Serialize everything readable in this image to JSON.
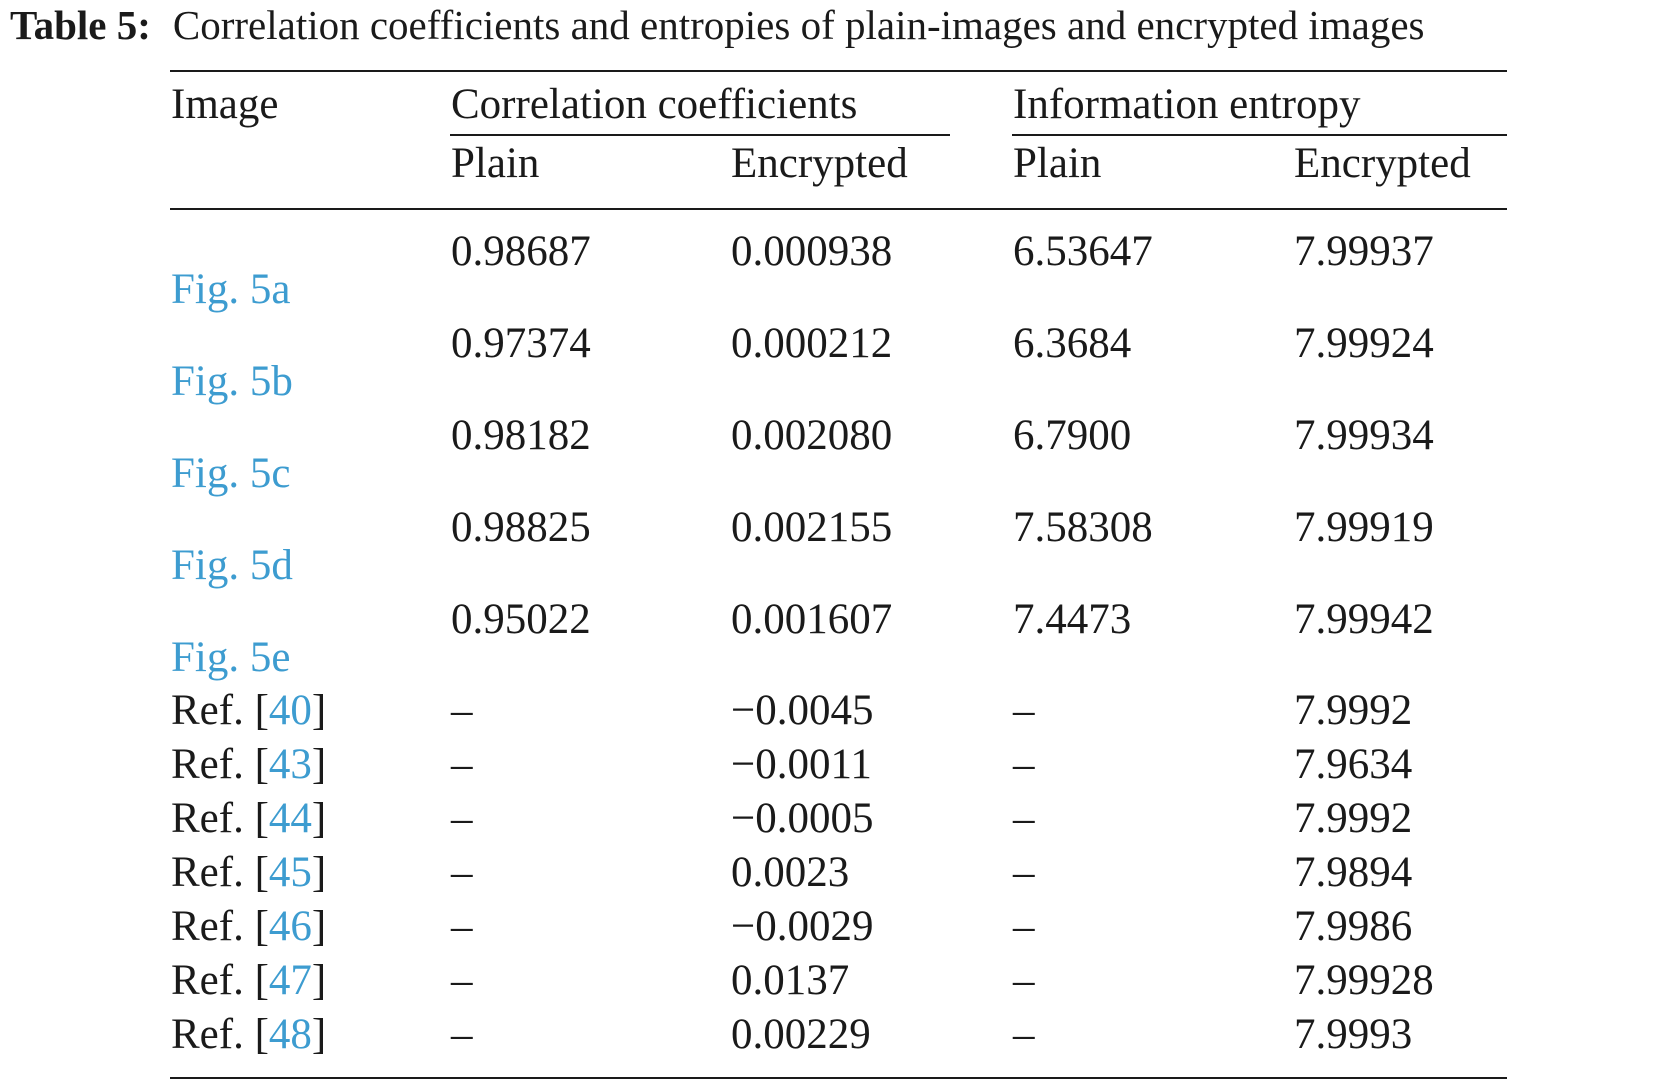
{
  "caption": {
    "label": "Table 5:",
    "text": "Correlation coefficients and entropies of plain-images and encrypted images"
  },
  "headers": {
    "image": "Image",
    "correlation": "Correlation coefficients",
    "entropy": "Information entropy",
    "plain": "Plain",
    "encrypted": "Encrypted"
  },
  "fig_rows": [
    {
      "label": "Fig. 5a",
      "corr_plain": "0.98687",
      "corr_enc": "0.000938",
      "ent_plain": "6.53647",
      "ent_enc": "7.99937"
    },
    {
      "label": "Fig. 5b",
      "corr_plain": "0.97374",
      "corr_enc": "0.000212",
      "ent_plain": "6.3684",
      "ent_enc": "7.99924"
    },
    {
      "label": "Fig. 5c",
      "corr_plain": "0.98182",
      "corr_enc": "0.002080",
      "ent_plain": "6.7900",
      "ent_enc": "7.99934"
    },
    {
      "label": "Fig. 5d",
      "corr_plain": "0.98825",
      "corr_enc": "0.002155",
      "ent_plain": "7.58308",
      "ent_enc": "7.99919"
    },
    {
      "label": "Fig. 5e",
      "corr_plain": "0.95022",
      "corr_enc": "0.001607",
      "ent_plain": "7.4473",
      "ent_enc": "7.99942"
    }
  ],
  "ref_rows": [
    {
      "prefix": "Ref. [",
      "ref": "40",
      "suffix": "]",
      "corr_plain": "–",
      "corr_enc": "−0.0045",
      "ent_plain": "–",
      "ent_enc": "7.9992"
    },
    {
      "prefix": "Ref. [",
      "ref": "43",
      "suffix": "]",
      "corr_plain": "–",
      "corr_enc": "−0.0011",
      "ent_plain": "–",
      "ent_enc": "7.9634"
    },
    {
      "prefix": "Ref. [",
      "ref": "44",
      "suffix": "]",
      "corr_plain": "–",
      "corr_enc": "−0.0005",
      "ent_plain": "–",
      "ent_enc": "7.9992"
    },
    {
      "prefix": "Ref. [",
      "ref": "45",
      "suffix": "]",
      "corr_plain": "–",
      "corr_enc": "0.0023",
      "ent_plain": "–",
      "ent_enc": "7.9894"
    },
    {
      "prefix": "Ref. [",
      "ref": "46",
      "suffix": "]",
      "corr_plain": "–",
      "corr_enc": "−0.0029",
      "ent_plain": "–",
      "ent_enc": "7.9986"
    },
    {
      "prefix": "Ref. [",
      "ref": "47",
      "suffix": "]",
      "corr_plain": "–",
      "corr_enc": "0.0137",
      "ent_plain": "–",
      "ent_enc": "7.99928"
    },
    {
      "prefix": "Ref. [",
      "ref": "48",
      "suffix": "]",
      "corr_plain": "–",
      "corr_enc": "0.00229",
      "ent_plain": "–",
      "ent_enc": "7.9993"
    }
  ],
  "colors": {
    "link": "#3d9cd0",
    "text": "#1a1a1a"
  }
}
